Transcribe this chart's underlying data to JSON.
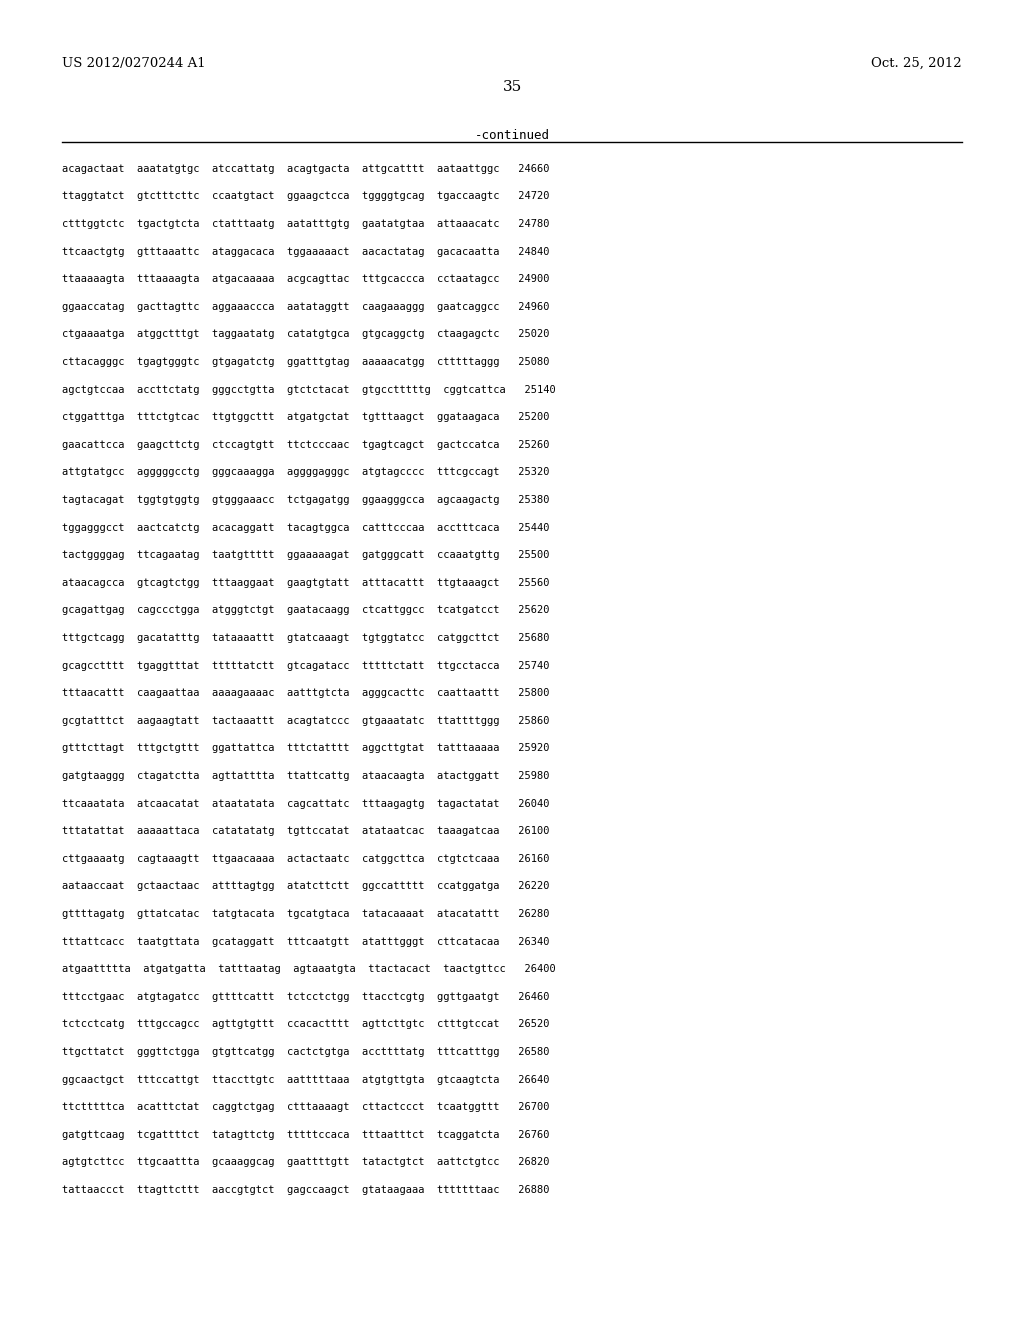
{
  "header_left": "US 2012/0270244 A1",
  "header_right": "Oct. 25, 2012",
  "page_number": "35",
  "continued_label": "-continued",
  "background_color": "#ffffff",
  "text_color": "#000000",
  "sequences": [
    "acagactaat  aaatatgtgc  atccattatg  acagtgacta  attgcatttt  aataattggc   24660",
    "ttaggtatct  gtctttcttc  ccaatgtact  ggaagctcca  tggggtgcag  tgaccaagtc   24720",
    "ctttggtctc  tgactgtcta  ctatttaatg  aatatttgtg  gaatatgtaa  attaaacatc   24780",
    "ttcaactgtg  gtttaaattc  ataggacaca  tggaaaaact  aacactatag  gacacaatta   24840",
    "ttaaaaagta  tttaaaagta  atgacaaaaa  acgcagttac  tttgcaccca  cctaatagcc   24900",
    "ggaaccatag  gacttagttc  aggaaaccca  aatataggtt  caagaaaggg  gaatcaggcc   24960",
    "ctgaaaatga  atggctttgt  taggaatatg  catatgtgca  gtgcaggctg  ctaagagctc   25020",
    "cttacagggc  tgagtgggtc  gtgagatctg  ggatttgtag  aaaaacatgg  ctttttaggg   25080",
    "agctgtccaa  accttctatg  gggcctgtta  gtctctacat  gtgcctttttg  cggtcattca   25140",
    "ctggatttga  tttctgtcac  ttgtggcttt  atgatgctat  tgtttaagct  ggataagaca   25200",
    "gaacattcca  gaagcttctg  ctccagtgtt  ttctcccaac  tgagtcagct  gactccatca   25260",
    "attgtatgcc  agggggcctg  gggcaaagga  aggggagggc  atgtagcccc  tttcgccagt   25320",
    "tagtacagat  tggtgtggtg  gtgggaaacc  tctgagatgg  ggaagggcca  agcaagactg   25380",
    "tggagggcct  aactcatctg  acacaggatt  tacagtggca  catttcccaa  acctttcaca   25440",
    "tactggggag  ttcagaatag  taatgttttt  ggaaaaagat  gatgggcatt  ccaaatgttg   25500",
    "ataacagcca  gtcagtctgg  tttaaggaat  gaagtgtatt  atttacattt  ttgtaaagct   25560",
    "gcagattgag  cagccctgga  atgggtctgt  gaatacaagg  ctcattggcc  tcatgatcct   25620",
    "tttgctcagg  gacatatttg  tataaaattt  gtatcaaagt  tgtggtatcc  catggcttct   25680",
    "gcagcctttt  tgaggtttat  tttttatctt  gtcagatacc  tttttctatt  ttgcctacca   25740",
    "tttaacattt  caagaattaa  aaaagaaaac  aatttgtcta  agggcacttc  caattaattt   25800",
    "gcgtatttct  aagaagtatt  tactaaattt  acagtatccc  gtgaaatatc  ttattttggg   25860",
    "gtttcttagt  tttgctgttt  ggattattca  tttctatttt  aggcttgtat  tatttaaaaa   25920",
    "gatgtaaggg  ctagatctta  agttatttta  ttattcattg  ataacaagta  atactggatt   25980",
    "ttcaaatata  atcaacatat  ataatatata  cagcattatc  tttaagagtg  tagactatat   26040",
    "tttatattat  aaaaattaca  catatatatg  tgttccatat  atataatcac  taaagatcaa   26100",
    "cttgaaaatg  cagtaaagtt  ttgaacaaaa  actactaatc  catggcttca  ctgtctcaaa   26160",
    "aataaccaat  gctaactaac  attttagtgg  atatcttctt  ggccattttt  ccatggatga   26220",
    "gttttagatg  gttatcatac  tatgtacata  tgcatgtaca  tatacaaaat  atacatattt   26280",
    "tttattcacc  taatgttata  gcataggatt  tttcaatgtt  atatttgggt  cttcatacaa   26340",
    "atgaattttta  atgatgatta  tatttaatag  agtaaatgta  ttactacact  taactgttcc   26400",
    "tttcctgaac  atgtagatcc  gttttcattt  tctcctctgg  ttacctcgtg  ggttgaatgt   26460",
    "tctcctcatg  tttgccagcc  agttgtgttt  ccacactttt  agttcttgtc  ctttgtccat   26520",
    "ttgcttatct  gggttctgga  gtgttcatgg  cactctgtga  accttttatg  tttcatttgg   26580",
    "ggcaactgct  tttccattgt  ttaccttgtc  aatttttaaa  atgtgttgta  gtcaagtcta   26640",
    "ttctttttca  acatttctat  caggtctgag  ctttaaaagt  cttactccct  tcaatggttt   26700",
    "gatgttcaag  tcgattttct  tatagttctg  tttttccaca  tttaatttct  tcaggatcta   26760",
    "agtgtcttcc  ttgcaattta  gcaaaggcag  gaattttgtt  tatactgtct  aattctgtcc   26820",
    "tattaaccct  ttagttcttt  aaccgtgtct  gagccaagct  gtataagaaa  tttttttaac   26880"
  ]
}
